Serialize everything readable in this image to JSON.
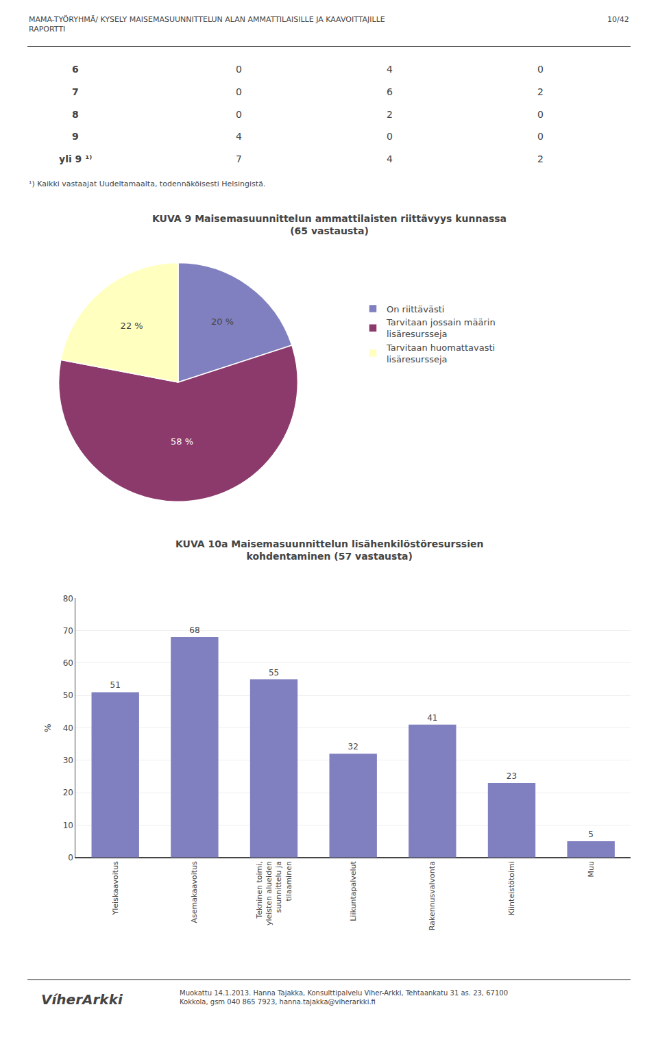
{
  "annotations": {
    "header_left": "MAMA-TYÖRYHMÄ/ KYSELY MAISEMASUUNNITTELUN ALAN AMMATTILAISILLE JA KAAVOITTAJILLE\nRAPORTTI",
    "header_right": "10/42",
    "footnote": "¹) Kaikki vastaajat Uudeltamaalta, todennäköisesti Helsingistä.",
    "footer_logo": "VíherArkki",
    "footer_text": "Muokattu 14.1.2013. Hanna Tajakka, Konsulttipalvelu Viher-Arkki, Tehtaankatu 31 as. 23, 67100\nKokkola, gsm 040 865 7923, hanna.tajakka@viherarkki.fi"
  },
  "chart_data": [
    {
      "type": "table",
      "rows": [
        [
          "6",
          "0",
          "4",
          "0"
        ],
        [
          "7",
          "0",
          "6",
          "2"
        ],
        [
          "8",
          "0",
          "2",
          "0"
        ],
        [
          "9",
          "4",
          "0",
          "0"
        ],
        [
          "yli 9 ¹⁾",
          "7",
          "4",
          "2"
        ]
      ]
    },
    {
      "type": "pie",
      "title": "KUVA 9 Maisemasuunnittelun ammattilaisten riittävyys kunnassa\n(65 vastausta)",
      "categories": [
        "On riittävästi",
        "Tarvitaan jossain määrin\nlisäresursseja",
        "Tarvitaan huomattavasti\nlisäresursseja"
      ],
      "values": [
        20,
        58,
        22
      ],
      "value_labels": [
        "20 %",
        "58 %",
        "22 %"
      ],
      "colors": [
        "#8080c0",
        "#8B3A6B",
        "#FFFFC0"
      ],
      "data_labels": true,
      "legend": "right"
    },
    {
      "type": "bar",
      "title": "KUVA 10a Maisemasuunnittelun lisähenkilöstöresurssien\nkohdentaminen (57 vastausta)",
      "categories": [
        "Yleiskaavoitus",
        "Asemakaavoitus",
        "Tekninen toimi,\nyleisten alueiden\nsuunnittelu ja\ntilaaminen",
        "Liikuntapalvelut",
        "Rakennusvalvonta",
        "Kiinteistötoimi",
        "Muu"
      ],
      "values": [
        51,
        68,
        55,
        32,
        41,
        23,
        5
      ],
      "color": "#8080c0",
      "ylabel": "%",
      "ylim": [
        0,
        80
      ],
      "yticks": [
        0,
        10,
        20,
        30,
        40,
        50,
        60,
        70,
        80
      ],
      "grid": true,
      "data_labels": true
    }
  ]
}
